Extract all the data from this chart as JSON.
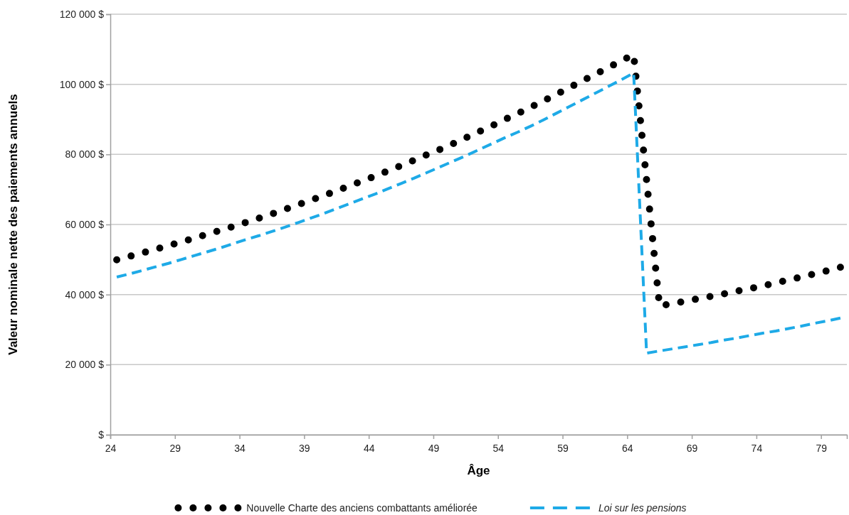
{
  "chart_data": {
    "type": "line",
    "xlabel": "Âge",
    "ylabel": "Valeur nominale nette des paiements annuels",
    "x": [
      24.5,
      25.5,
      26.5,
      27.5,
      28.5,
      29.5,
      30.5,
      31.5,
      32.5,
      33.5,
      34.5,
      35.5,
      36.5,
      37.5,
      38.5,
      39.5,
      40.5,
      41.5,
      42.5,
      43.5,
      44.5,
      45.5,
      46.5,
      47.5,
      48.5,
      49.5,
      50.5,
      51.5,
      52.5,
      53.5,
      54.5,
      55.5,
      56.5,
      57.5,
      58.5,
      59.5,
      60.5,
      61.5,
      62.5,
      63.5,
      64.5,
      65.5,
      66.5,
      67.5,
      68.5,
      69.5,
      70.5,
      71.5,
      72.5,
      73.5,
      74.5,
      75.5,
      76.5,
      77.5,
      78.5,
      79.5,
      80.5
    ],
    "series": [
      {
        "name": "Nouvelle Charte des anciens combattants améliorée",
        "color": "#000000",
        "line_style": "dotted",
        "x": [
          24.5,
          25.5,
          26.5,
          27.5,
          28.5,
          29.5,
          30.5,
          31.5,
          32.5,
          33.5,
          34.5,
          35.5,
          36.5,
          37.5,
          38.5,
          39.5,
          40.5,
          41.5,
          42.5,
          43.5,
          44.5,
          45.5,
          46.5,
          47.5,
          48.5,
          49.5,
          50.5,
          51.5,
          52.5,
          53.5,
          54.5,
          55.5,
          56.5,
          57.5,
          58.5,
          59.5,
          60.5,
          61.5,
          62.5,
          63.5,
          64.5,
          66.5,
          67.5,
          68.5,
          69.5,
          70.5,
          71.5,
          72.5,
          73.5,
          74.5,
          75.5,
          76.5,
          77.5,
          78.5,
          79.5,
          80.5
        ],
        "values": [
          49900,
          50900,
          51900,
          52900,
          54000,
          55000,
          56100,
          57200,
          58300,
          59400,
          60600,
          61800,
          63000,
          64300,
          65600,
          66900,
          68200,
          69600,
          71000,
          72400,
          73800,
          75300,
          76800,
          78300,
          79900,
          81400,
          83000,
          84700,
          86400,
          88100,
          89900,
          91600,
          93400,
          95200,
          97100,
          99000,
          100900,
          102800,
          104700,
          106600,
          108500,
          36800,
          37400,
          38100,
          38800,
          39500,
          40200,
          41000,
          41700,
          42500,
          43300,
          44200,
          45000,
          45900,
          46800,
          47800
        ]
      },
      {
        "name": "Loi sur les pensions",
        "color": "#1eaae7",
        "line_style": "dashed",
        "values": [
          45000,
          45900,
          46900,
          47900,
          48900,
          50000,
          51100,
          52200,
          53300,
          54500,
          55700,
          56800,
          58000,
          59200,
          60500,
          61800,
          63100,
          64500,
          65900,
          67300,
          68700,
          70200,
          71700,
          73200,
          74800,
          76400,
          78000,
          79600,
          81300,
          83000,
          84700,
          86300,
          88000,
          89800,
          91700,
          93600,
          95500,
          97400,
          99300,
          101200,
          103200,
          23300,
          23900,
          24500,
          25100,
          25700,
          26300,
          27000,
          27600,
          28300,
          29000,
          29600,
          30300,
          31000,
          31800,
          32500,
          33300
        ]
      }
    ],
    "xlim": [
      24,
      81
    ],
    "xticks": [
      24,
      29,
      34,
      39,
      44,
      49,
      54,
      59,
      64,
      69,
      74,
      79
    ],
    "ylim": [
      0,
      120000
    ],
    "yticks": [
      {
        "value": 0,
        "label": "$"
      },
      {
        "value": 20000,
        "label": "20 000 $"
      },
      {
        "value": 40000,
        "label": "40 000 $"
      },
      {
        "value": 60000,
        "label": "60 000 $"
      },
      {
        "value": 80000,
        "label": "80 000 $"
      },
      {
        "value": 100000,
        "label": "100 000 $"
      },
      {
        "value": 120000,
        "label": "120 000 $"
      }
    ],
    "grid": "y",
    "legend": "bottom",
    "marker": "none"
  }
}
